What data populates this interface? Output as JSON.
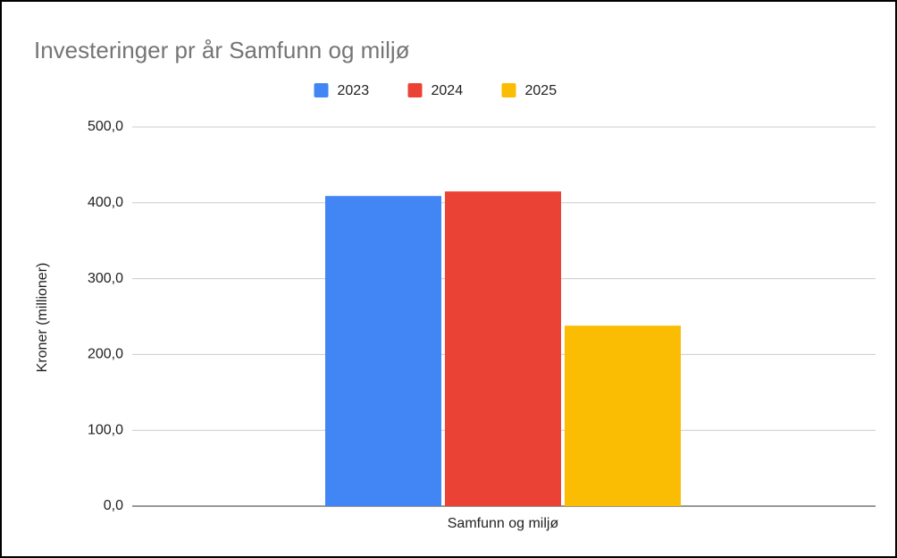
{
  "chart_data": {
    "type": "bar",
    "title": "Investeringer pr år Samfunn og miljø",
    "y_label": "Kroner (millioner)",
    "categories": [
      "Samfunn og miljø"
    ],
    "series": [
      {
        "name": "2023",
        "color": "#4285f4",
        "values": [
          409
        ]
      },
      {
        "name": "2024",
        "color": "#ea4335",
        "values": [
          415
        ]
      },
      {
        "name": "2025",
        "color": "#fbbc04",
        "values": [
          238
        ]
      }
    ],
    "ylim": [
      0,
      500
    ],
    "yticks": [
      {
        "value": 0,
        "label": "0,0"
      },
      {
        "value": 100,
        "label": "100,0"
      },
      {
        "value": 200,
        "label": "200,0"
      },
      {
        "value": 300,
        "label": "300,0"
      },
      {
        "value": 400,
        "label": "400,0"
      },
      {
        "value": 500,
        "label": "500,0"
      }
    ],
    "grid": true,
    "legend": "top"
  }
}
